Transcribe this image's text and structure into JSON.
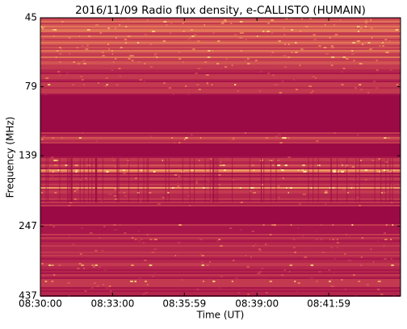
{
  "chart_data": {
    "type": "spectrogram",
    "title": "2016/11/09  Radio flux density, e-CALLISTO (HUMAIN)",
    "x_label": "Time (UT)",
    "y_label": "Frequency (MHz)",
    "xlim": [
      "08:30:00",
      "08:44:58"
    ],
    "xticks": [
      "08:30:00",
      "08:33:00",
      "08:35:59",
      "08:39:00",
      "08:41:59"
    ],
    "ylim": [
      45,
      437
    ],
    "yticks": [
      45,
      79,
      139,
      247,
      437
    ],
    "y_scale": "log",
    "y_inverted": true
  }
}
